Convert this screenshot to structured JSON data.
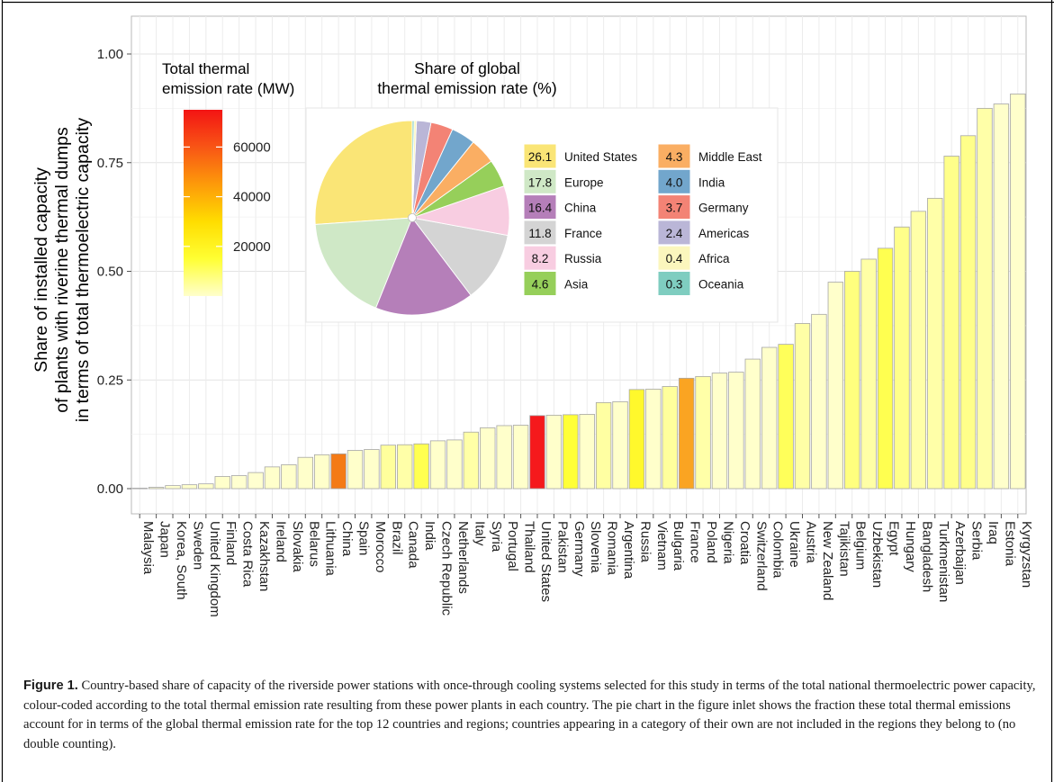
{
  "chart_data": {
    "type": "bar",
    "title": "",
    "xlabel": "",
    "ylabel_lines": [
      "Share of installed capacity",
      "of plants with riverine thermal dumps",
      "in terms of total thermoelectric capacity"
    ],
    "ylim": [
      0,
      1.0
    ],
    "yticks": [
      "0.00",
      "0.25",
      "0.50",
      "0.75",
      "1.00"
    ],
    "ytick_values": [
      0,
      0.25,
      0.5,
      0.75,
      1.0
    ],
    "grid": true,
    "categories": [
      "Malaysia",
      "Japan",
      "Korea, South",
      "Sweden",
      "United Kingdom",
      "Finland",
      "Costa Rica",
      "Kazakhstan",
      "Ireland",
      "Slovakia",
      "Belarus",
      "Lithuania",
      "China",
      "Spain",
      "Morocco",
      "Brazil",
      "Canada",
      "India",
      "Czech Republic",
      "Netherlands",
      "Italy",
      "Syria",
      "Portugal",
      "Thailand",
      "United States",
      "Pakistan",
      "Germany",
      "Slovenia",
      "Romania",
      "Argentina",
      "Russia",
      "Vietnam",
      "Bulgaria",
      "France",
      "Poland",
      "Nigeria",
      "Croatia",
      "Switzerland",
      "Colombia",
      "Ukraine",
      "Austria",
      "New Zealand",
      "Tajikistan",
      "Belgium",
      "Uzbekistan",
      "Egypt",
      "Hungary",
      "Bangladesh",
      "Turkmenistan",
      "Azerbaijan",
      "Serbia",
      "Iraq",
      "Estonia",
      "Kyrgyzstan"
    ],
    "values": [
      0.001,
      0.003,
      0.007,
      0.009,
      0.011,
      0.028,
      0.03,
      0.037,
      0.05,
      0.055,
      0.072,
      0.078,
      0.08,
      0.088,
      0.09,
      0.1,
      0.101,
      0.103,
      0.11,
      0.112,
      0.13,
      0.14,
      0.145,
      0.146,
      0.168,
      0.169,
      0.17,
      0.171,
      0.198,
      0.2,
      0.228,
      0.229,
      0.235,
      0.254,
      0.258,
      0.266,
      0.268,
      0.298,
      0.325,
      0.332,
      0.38,
      0.401,
      0.475,
      0.5,
      0.528,
      0.553,
      0.602,
      0.638,
      0.668,
      0.765,
      0.812,
      0.875,
      0.885,
      0.908
    ],
    "bar_colors": [
      "#ffffd0",
      "#ffffd0",
      "#ffffd0",
      "#ffffcb",
      "#ffffcb",
      "#ffffcb",
      "#ffffd0",
      "#ffffd0",
      "#ffffcb",
      "#ffffcb",
      "#ffffcb",
      "#ffffcb",
      "#f47a16",
      "#ffffcb",
      "#ffffcb",
      "#ffff9c",
      "#ffffa8",
      "#ffff50",
      "#ffffcb",
      "#ffffcb",
      "#ffffa6",
      "#ffffcb",
      "#ffffcb",
      "#ffffcb",
      "#f5191c",
      "#ffffcb",
      "#ffff37",
      "#ffffcb",
      "#ffffa2",
      "#ffffcb",
      "#fff82c",
      "#ffffcb",
      "#ffff9c",
      "#faa422",
      "#ffffa8",
      "#ffffcb",
      "#ffffcb",
      "#ffffcb",
      "#ffffcb",
      "#ffff5a",
      "#ffffa6",
      "#ffffcb",
      "#ffffcb",
      "#ffff7e",
      "#ffffa6",
      "#ffff50",
      "#ffff8a",
      "#ffffa8",
      "#ffffa8",
      "#ffff8a",
      "#ffff8a",
      "#ffffa8",
      "#ffffcb",
      "#ffffcb"
    ],
    "colorbar": {
      "title_lines": [
        "Total thermal",
        "emission rate (MW)"
      ],
      "ticks": [
        "20000",
        "40000",
        "60000"
      ],
      "tick_values": [
        20000,
        40000,
        60000
      ],
      "range": [
        0,
        75000
      ],
      "colors": [
        "#ffffcc",
        "#ffff33",
        "#ffdd00",
        "#fd9a0a",
        "#f85515",
        "#f31414"
      ]
    },
    "inset_pie": {
      "title_lines": [
        "Share of",
        "global",
        "thermal emission rate (%)"
      ],
      "slices": [
        {
          "label": "United States",
          "value": 26.1,
          "display": "26.1",
          "color": "#fae576"
        },
        {
          "label": "Europe",
          "value": 17.8,
          "display": "17.8",
          "color": "#cfe8c6"
        },
        {
          "label": "China",
          "value": 16.4,
          "display": "16.4",
          "color": "#b57fb9"
        },
        {
          "label": "France",
          "value": 11.8,
          "display": "11.8",
          "color": "#d4d4d4"
        },
        {
          "label": "Russia",
          "value": 8.2,
          "display": "8.2",
          "color": "#f8cde1"
        },
        {
          "label": "Asia",
          "value": 4.6,
          "display": "4.6",
          "color": "#96cf5a"
        },
        {
          "label": "Middle East",
          "value": 4.3,
          "display": "4.3",
          "color": "#faae63"
        },
        {
          "label": "India",
          "value": 4.0,
          "display": "4.0",
          "color": "#72a6cc"
        },
        {
          "label": "Germany",
          "value": 3.7,
          "display": "3.7",
          "color": "#f38375"
        },
        {
          "label": "Americas",
          "value": 2.4,
          "display": "2.4",
          "color": "#bab6d7"
        },
        {
          "label": "Africa",
          "value": 0.4,
          "display": "0.4",
          "color": "#fbf6bd"
        },
        {
          "label": "Oceania",
          "value": 0.3,
          "display": "0.3",
          "color": "#7fcdc0"
        }
      ]
    }
  },
  "caption": {
    "label": "Figure 1.",
    "text": " Country-based share of capacity of the riverside power stations with once-through cooling systems selected for this study in terms of the total national thermoelectric power capacity, colour-coded according to the total thermal emission rate resulting from these power plants in each country. The pie chart in the figure inlet shows the fraction these total thermal emissions account for in terms of the global thermal emission rate for the top 12 countries and regions; countries appearing in a category of their own are not included in the regions they belong to (no double counting)."
  }
}
